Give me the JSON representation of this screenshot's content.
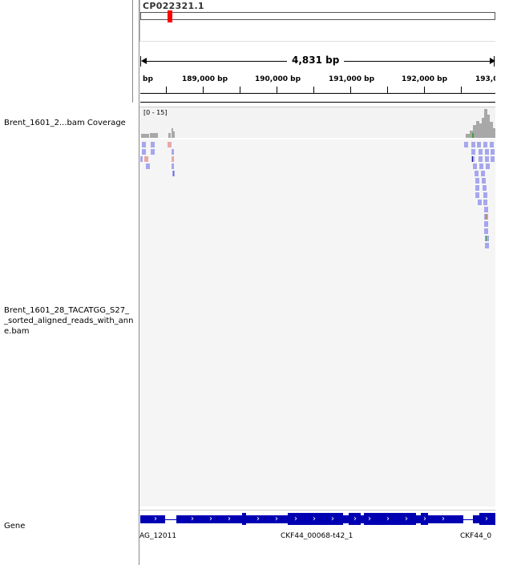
{
  "ideogram": {
    "chrom_name": "CP022321.1"
  },
  "ruler": {
    "span_text": "4,831 bp",
    "ticks": [
      "bp",
      "189,000 bp",
      "190,000 bp",
      "191,000 bp",
      "192,000 bp",
      "193,0"
    ]
  },
  "tracks": {
    "coverage_name": "Brent_1601_2...bam Coverage",
    "coverage_range": "[0 - 15]",
    "alignment_name_lines": [
      "Brent_1601_28_TACATGG_S27_",
      "_sorted_aligned_reads_with_ann",
      "e.bam"
    ],
    "gene_name": "Gene"
  },
  "gene_track": {
    "labels": [
      "AG_12011",
      "CKF44_00068-t42_1",
      "CKF44_0"
    ],
    "strand_glyph": "›"
  },
  "colors": {
    "gene_blue": "#0000b2",
    "read_fwd": "#a6a6ee",
    "read_rev": "#e8a8a8",
    "coverage_gray": "#a8a8a8",
    "ideogram_marker": "#ff0000"
  }
}
